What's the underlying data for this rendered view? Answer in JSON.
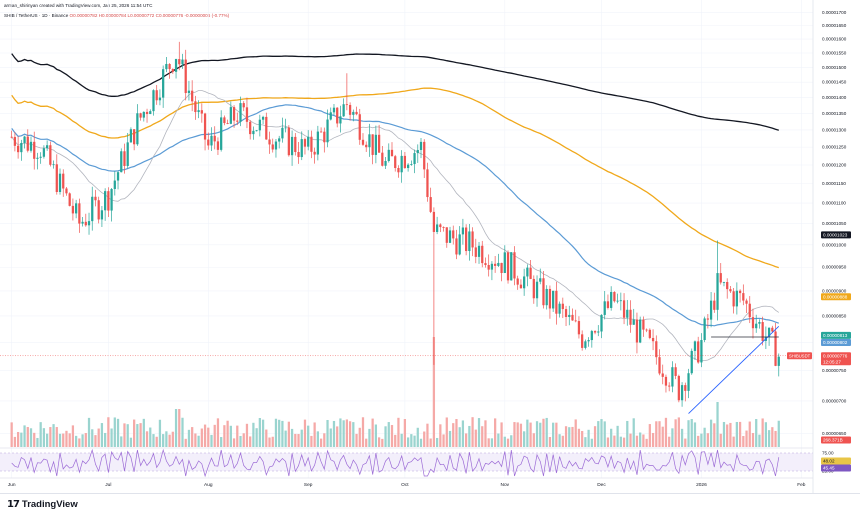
{
  "header": {
    "author_line": "arman_shirinyan created with TradingView.com, Jan 25, 2026 11:54 UTC",
    "symbol": "SHIB / TetherUS · 1D · Binance",
    "ohlc": "O0.00000782 H0.00000784 L0.00000772 C0.00000776 -0.00000006 (-0.77%)"
  },
  "footer": {
    "logo_text": "TradingView",
    "logo_mark": "17"
  },
  "colors": {
    "up": "#26a69a",
    "down": "#ef5350",
    "ma_black": "#131722",
    "ma_orange": "#f0a81b",
    "ma_blue": "#5b9bd5",
    "ma_gray": "#b2b5be",
    "trend": "#2962ff",
    "rsi": "#9c6bd6"
  },
  "chart_data": {
    "type": "candlestick",
    "title": "SHIB / TetherUS · 1D · Binance",
    "x_ticks": [
      "Jun",
      "Jul",
      "Aug",
      "Sep",
      "Oct",
      "Nov",
      "Dec",
      "2026",
      "Feb"
    ],
    "y_ticks": [
      "0.00001700",
      "0.00001650",
      "0.00001600",
      "0.00001550",
      "0.00001500",
      "0.00001450",
      "0.00001400",
      "0.00001350",
      "0.00001300",
      "0.00001250",
      "0.00001200",
      "0.00001150",
      "0.00001100",
      "0.00001050",
      "0.00001000",
      "0.00000950",
      "0.00000900",
      "0.00000850",
      "0.00000800",
      "0.00000750",
      "0.00000700",
      "0.00000650"
    ],
    "ylim": [
      6.3e-06,
      1.71e-05
    ],
    "scale": "log",
    "price_series": [
      {
        "date": "2025-06-01",
        "close": 1.28e-05
      },
      {
        "date": "2025-06-10",
        "close": 1.25e-05
      },
      {
        "date": "2025-06-22",
        "close": 1.05e-05
      },
      {
        "date": "2025-07-01",
        "close": 1.12e-05
      },
      {
        "date": "2025-07-10",
        "close": 1.32e-05
      },
      {
        "date": "2025-07-22",
        "close": 1.55e-05
      },
      {
        "date": "2025-08-01",
        "close": 1.25e-05
      },
      {
        "date": "2025-08-10",
        "close": 1.35e-05
      },
      {
        "date": "2025-08-22",
        "close": 1.28e-05
      },
      {
        "date": "2025-09-01",
        "close": 1.24e-05
      },
      {
        "date": "2025-09-13",
        "close": 1.38e-05
      },
      {
        "date": "2025-09-25",
        "close": 1.2e-05
      },
      {
        "date": "2025-10-06",
        "close": 1.25e-05
      },
      {
        "date": "2025-10-10",
        "close": 1.03e-05
      },
      {
        "date": "2025-10-22",
        "close": 1e-05
      },
      {
        "date": "2025-11-03",
        "close": 9.5e-06
      },
      {
        "date": "2025-11-15",
        "close": 8.8e-06
      },
      {
        "date": "2025-11-25",
        "close": 8.1e-06
      },
      {
        "date": "2025-12-05",
        "close": 8.8e-06
      },
      {
        "date": "2025-12-15",
        "close": 8e-06
      },
      {
        "date": "2025-12-25",
        "close": 7.2e-06
      },
      {
        "date": "2026-01-01",
        "close": 8e-06
      },
      {
        "date": "2026-01-06",
        "close": 9.1e-06
      },
      {
        "date": "2026-01-14",
        "close": 8.8e-06
      },
      {
        "date": "2026-01-25",
        "close": 7.76e-06
      }
    ],
    "moving_averages": [
      {
        "color": "#131722",
        "last": "0.00001023",
        "label_color": "#131722"
      },
      {
        "color": "#f0a81b",
        "last": "0.00000888",
        "label_color": "#f0a81b"
      },
      {
        "color": "#5b9bd5",
        "last": "0.00000802",
        "label_color": "#5b9bd5"
      },
      {
        "color": "#b2b5be",
        "last": "0.00000813",
        "label_color": "#26a69a"
      }
    ],
    "last_price": {
      "label": "SHIBUSDT",
      "value": "0.00000776",
      "countdown": "12:05:27"
    },
    "volume": {
      "last": "268.371B"
    },
    "rsi": {
      "y_ticks": [
        "75.00",
        "25.00"
      ],
      "last": [
        "48.02",
        "45.45"
      ]
    }
  }
}
